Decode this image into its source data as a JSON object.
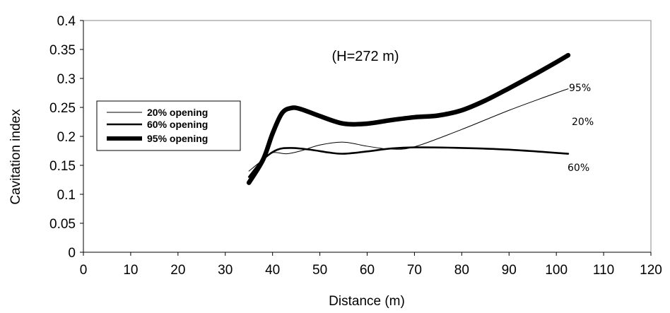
{
  "chart_data": {
    "type": "line",
    "title": "",
    "xlabel": "Distance (m)",
    "ylabel": "Cavitation index",
    "xlim": [
      0,
      120
    ],
    "ylim": [
      0,
      0.4
    ],
    "x_ticks": [
      0,
      10,
      20,
      30,
      40,
      50,
      60,
      70,
      80,
      90,
      100,
      110,
      120
    ],
    "y_ticks": [
      0,
      0.05,
      0.1,
      0.15,
      0.2,
      0.25,
      0.3,
      0.35,
      0.4
    ],
    "x_tick_labels": [
      "0",
      "10",
      "20",
      "30",
      "40",
      "50",
      "60",
      "70",
      "80",
      "90",
      "100",
      "110",
      "120"
    ],
    "y_tick_labels": [
      "0",
      "0.05",
      "0.1",
      "0.15",
      "0.2",
      "0.25",
      "0.3",
      "0.35",
      "0.4"
    ],
    "grid": false,
    "legend_position": "left",
    "annotation": "(H=272 m)",
    "series": [
      {
        "name": "20% opening",
        "end_label": "20%",
        "color": "#000000",
        "weight": "thin",
        "points": [
          [
            35,
            0.14
          ],
          [
            38,
            0.16
          ],
          [
            40,
            0.172
          ],
          [
            43,
            0.17
          ],
          [
            46,
            0.175
          ],
          [
            50,
            0.185
          ],
          [
            55,
            0.19
          ],
          [
            60,
            0.183
          ],
          [
            65,
            0.178
          ],
          [
            70,
            0.182
          ],
          [
            80,
            0.212
          ],
          [
            90,
            0.245
          ],
          [
            100,
            0.275
          ],
          [
            102.5,
            0.282
          ]
        ]
      },
      {
        "name": "60% opening",
        "end_label": "60%",
        "color": "#000000",
        "weight": "medium",
        "points": [
          [
            35,
            0.13
          ],
          [
            38,
            0.16
          ],
          [
            41,
            0.177
          ],
          [
            44,
            0.18
          ],
          [
            48,
            0.177
          ],
          [
            52,
            0.172
          ],
          [
            55,
            0.17
          ],
          [
            60,
            0.174
          ],
          [
            65,
            0.179
          ],
          [
            70,
            0.181
          ],
          [
            80,
            0.18
          ],
          [
            90,
            0.177
          ],
          [
            102.5,
            0.17
          ]
        ]
      },
      {
        "name": "95% opening",
        "end_label": "95%",
        "color": "#000000",
        "weight": "thick",
        "points": [
          [
            35,
            0.12
          ],
          [
            38,
            0.16
          ],
          [
            40,
            0.205
          ],
          [
            42,
            0.24
          ],
          [
            44,
            0.249
          ],
          [
            46,
            0.247
          ],
          [
            50,
            0.235
          ],
          [
            55,
            0.222
          ],
          [
            60,
            0.222
          ],
          [
            65,
            0.228
          ],
          [
            70,
            0.233
          ],
          [
            75,
            0.236
          ],
          [
            80,
            0.245
          ],
          [
            85,
            0.262
          ],
          [
            90,
            0.283
          ],
          [
            95,
            0.305
          ],
          [
            100,
            0.328
          ],
          [
            102.5,
            0.34
          ]
        ]
      }
    ]
  }
}
